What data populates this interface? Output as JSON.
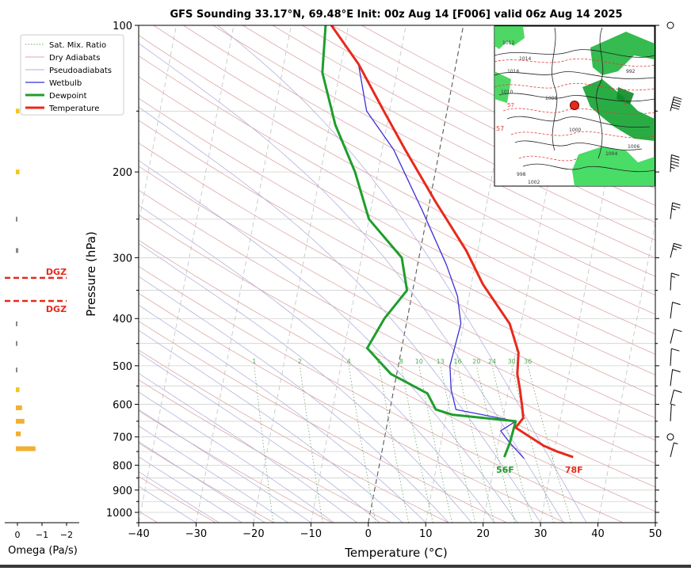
{
  "chart_data": {
    "type": "skew-t",
    "title": "GFS Sounding 33.17°N, 69.48°E Init: 00z Aug 14 [F006] valid 06z Aug 14 2025",
    "xlabel": "Temperature (°C)",
    "ylabel": "Pressure (hPa)",
    "xlim": [
      -40,
      50
    ],
    "ylim": [
      1050,
      100
    ],
    "y_scale": "log",
    "x_ticks": [
      -40,
      -30,
      -20,
      -10,
      0,
      10,
      20,
      30,
      40,
      50
    ],
    "y_ticks": [
      100,
      200,
      300,
      400,
      500,
      600,
      700,
      800,
      900,
      1000
    ],
    "legend": {
      "position": "top-left",
      "entries": [
        "Sat. Mix. Ratio",
        "Dry Adiabats",
        "Pseudoadiabats",
        "Wetbulb",
        "Dewpoint",
        "Temperature"
      ]
    },
    "colors": {
      "temperature": "#e8291c",
      "dewpoint": "#1e9e2c",
      "wetbulb": "#3b2fd8",
      "dry_adiabat": "#dda8a8",
      "pseudoadiabat": "#b2b2dc",
      "mixing_ratio": "#6aa86a",
      "dgz": "#e8291c",
      "omega": "#f0c81e"
    },
    "series": [
      {
        "name": "Temperature",
        "points": [
          [
            33.5,
            770
          ],
          [
            30.5,
            750
          ],
          [
            28,
            730
          ],
          [
            22.5,
            670
          ],
          [
            23.5,
            640
          ],
          [
            23,
            610
          ],
          [
            22,
            560
          ],
          [
            21,
            520
          ],
          [
            20.5,
            470
          ],
          [
            18,
            410
          ],
          [
            12,
            340
          ],
          [
            8,
            290
          ],
          [
            1,
            230
          ],
          [
            -6,
            180
          ],
          [
            -11,
            150
          ],
          [
            -17,
            120
          ],
          [
            -23,
            100
          ]
        ]
      },
      {
        "name": "Dewpoint",
        "points": [
          [
            21.5,
            770
          ],
          [
            22,
            720
          ],
          [
            22.3,
            650
          ],
          [
            11,
            630
          ],
          [
            8,
            615
          ],
          [
            6,
            570
          ],
          [
            -1,
            520
          ],
          [
            -6,
            460
          ],
          [
            -4,
            400
          ],
          [
            -1,
            350
          ],
          [
            -3,
            300
          ],
          [
            -10,
            250
          ],
          [
            -14,
            200
          ],
          [
            -19,
            160
          ],
          [
            -23,
            125
          ],
          [
            -24,
            100
          ]
        ]
      },
      {
        "name": "Wetbulb",
        "points": [
          [
            25,
            775
          ],
          [
            22,
            720
          ],
          [
            20,
            680
          ],
          [
            22.3,
            650
          ],
          [
            11.5,
            615
          ],
          [
            10,
            560
          ],
          [
            9,
            500
          ],
          [
            9.5,
            410
          ],
          [
            8,
            360
          ],
          [
            5,
            310
          ],
          [
            -1,
            240
          ],
          [
            -8,
            180
          ],
          [
            -14,
            150
          ],
          [
            -17,
            120
          ],
          [
            -23,
            100
          ]
        ]
      }
    ],
    "surface_labels": {
      "temperature": "78F",
      "dewpoint": "56F"
    },
    "mixing_ratio_labels": [
      "1",
      "2",
      "4",
      "6",
      "8",
      "10",
      "13",
      "16",
      "20",
      "24",
      "30",
      "36"
    ],
    "dgz": {
      "label": "DGZ",
      "levels_hpa": [
        330,
        368
      ]
    },
    "omega": {
      "xlabel": "Omega (Pa/s)",
      "ticks": [
        "0",
        "−1",
        "−2"
      ],
      "values": [
        [
          150,
          -0.15
        ],
        [
          200,
          -0.15
        ],
        [
          250,
          -0.05
        ],
        [
          290,
          -0.1
        ],
        [
          410,
          -0.05
        ],
        [
          450,
          -0.05
        ],
        [
          510,
          -0.05
        ],
        [
          560,
          -0.15
        ],
        [
          610,
          -0.25
        ],
        [
          650,
          -0.35
        ],
        [
          690,
          -0.2
        ],
        [
          740,
          -0.8
        ]
      ]
    },
    "winds": [
      [
        100,
        null
      ],
      [
        150,
        50
      ],
      [
        200,
        45
      ],
      [
        250,
        25
      ],
      [
        300,
        25
      ],
      [
        350,
        15
      ],
      [
        400,
        10
      ],
      [
        450,
        10
      ],
      [
        500,
        10
      ],
      [
        550,
        10
      ],
      [
        600,
        10
      ],
      [
        650,
        5
      ],
      [
        700,
        null
      ],
      [
        770,
        5
      ]
    ],
    "map_inset": {
      "labels": [
        "1012",
        "1016",
        "1010",
        "1014",
        "1008",
        "1000",
        "998",
        "1006",
        "1004",
        "1002",
        "992",
        "57",
        "57",
        "1"
      ]
    }
  }
}
